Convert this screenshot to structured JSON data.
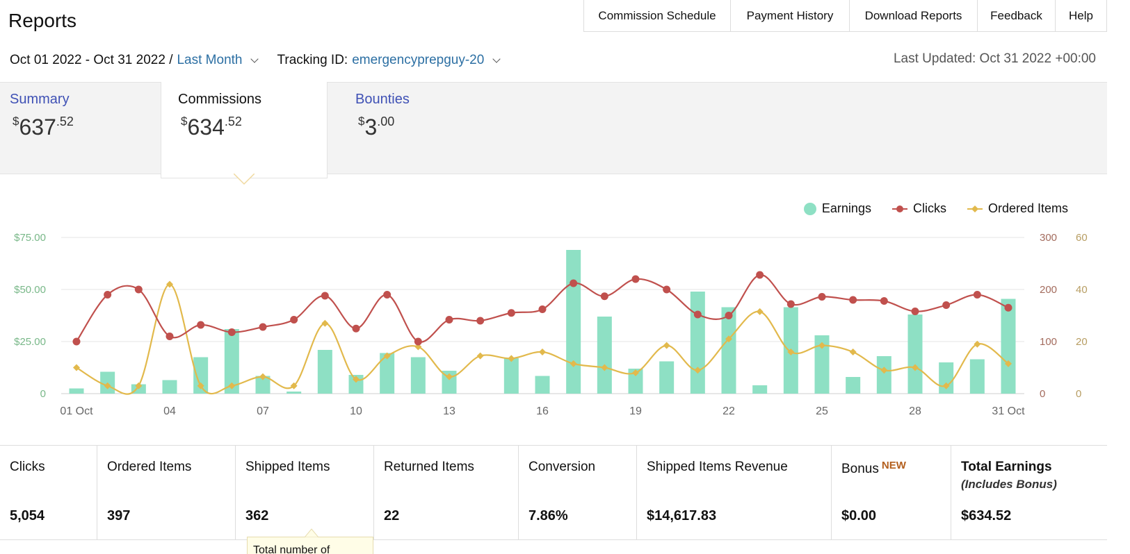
{
  "header": {
    "title": "Reports",
    "nav": [
      {
        "label": "Commission Schedule"
      },
      {
        "label": "Payment History"
      },
      {
        "label": "Download Reports"
      },
      {
        "label": "Feedback"
      },
      {
        "label": "Help"
      }
    ]
  },
  "filters": {
    "date_range": "Oct 01 2022 - Oct 31 2022 /",
    "period": "Last Month",
    "tracking_label": "Tracking ID:",
    "tracking_id": "emergencyprepguy-20",
    "last_updated": "Last Updated: Oct 31 2022 +00:00"
  },
  "tabs": [
    {
      "label": "Summary",
      "dollars": "637",
      "cents": ".52",
      "currency": "$",
      "active": false
    },
    {
      "label": "Commissions",
      "dollars": "634",
      "cents": ".52",
      "currency": "$",
      "active": true
    },
    {
      "label": "Bounties",
      "dollars": "3",
      "cents": ".00",
      "currency": "$",
      "active": false
    }
  ],
  "colors": {
    "earnings": "#8ee0c4",
    "clicks": "#c0504d",
    "ordered_items": "#e2b94c",
    "link": "#2c6fa3",
    "tab_link": "#3f51b5"
  },
  "chart_data": {
    "type": "bar",
    "x": [
      "01 Oct",
      "02",
      "03",
      "04",
      "05",
      "06",
      "07",
      "08",
      "09",
      "10",
      "11",
      "12",
      "13",
      "14",
      "15",
      "16",
      "17",
      "18",
      "19",
      "20",
      "21",
      "22",
      "23",
      "24",
      "25",
      "26",
      "27",
      "28",
      "29",
      "30",
      "31 Oct"
    ],
    "x_tick_labels": [
      "01 Oct",
      "04",
      "07",
      "10",
      "13",
      "16",
      "19",
      "22",
      "25",
      "28",
      "31 Oct"
    ],
    "legend": [
      "Earnings",
      "Clicks",
      "Ordered Items"
    ],
    "legend_position": "top-right",
    "y_left": {
      "ticks": [
        "$75.00",
        "$50.00",
        "$25.00",
        "0"
      ],
      "range": [
        0,
        75
      ]
    },
    "y_right1": {
      "ticks": [
        "300",
        "200",
        "100",
        "0"
      ],
      "range": [
        0,
        300
      ]
    },
    "y_right2": {
      "ticks": [
        "60",
        "40",
        "20",
        "0"
      ],
      "range": [
        0,
        60
      ]
    },
    "grid": true,
    "series": [
      {
        "name": "Earnings",
        "type": "bar",
        "axis": "left",
        "values": [
          2.5,
          10.5,
          4.5,
          6.5,
          17.5,
          31,
          8.5,
          1,
          21,
          9,
          19.5,
          17.5,
          11,
          0,
          17,
          8.5,
          69,
          37,
          12,
          15.5,
          49,
          41.5,
          4,
          41.5,
          28,
          8,
          18,
          38,
          15,
          16.5,
          45.5
        ]
      },
      {
        "name": "Clicks",
        "type": "line",
        "axis": "right1",
        "values": [
          100,
          190,
          200,
          110,
          132,
          118,
          128,
          142,
          188,
          125,
          190,
          100,
          142,
          140,
          155,
          162,
          212,
          187,
          220,
          200,
          152,
          150,
          228,
          172,
          186,
          180,
          178,
          158,
          170,
          190,
          165
        ]
      },
      {
        "name": "Ordered Items",
        "type": "line",
        "axis": "right2",
        "values": [
          10,
          3,
          3,
          42,
          3,
          3,
          6.5,
          3,
          27,
          5.5,
          14.5,
          18,
          6.5,
          14.5,
          13.5,
          16,
          11.5,
          10,
          8,
          18.5,
          9,
          21,
          31.5,
          16,
          18.5,
          16,
          9,
          10,
          3,
          19,
          11.5
        ]
      }
    ]
  },
  "stats": [
    {
      "label": "Clicks",
      "value": "5,054"
    },
    {
      "label": "Ordered Items",
      "value": "397"
    },
    {
      "label": "Shipped Items",
      "value": "362"
    },
    {
      "label": "Returned Items",
      "value": "22"
    },
    {
      "label": "Conversion",
      "value": "7.86%"
    },
    {
      "label": "Shipped Items Revenue",
      "value": "$14,617.83"
    },
    {
      "label": "Bonus",
      "badge": "NEW",
      "value": "$0.00"
    },
    {
      "label": "Total Earnings",
      "sublabel": "(Includes Bonus)",
      "value": "$634.52"
    }
  ],
  "tooltip": {
    "text": "Total number of"
  }
}
